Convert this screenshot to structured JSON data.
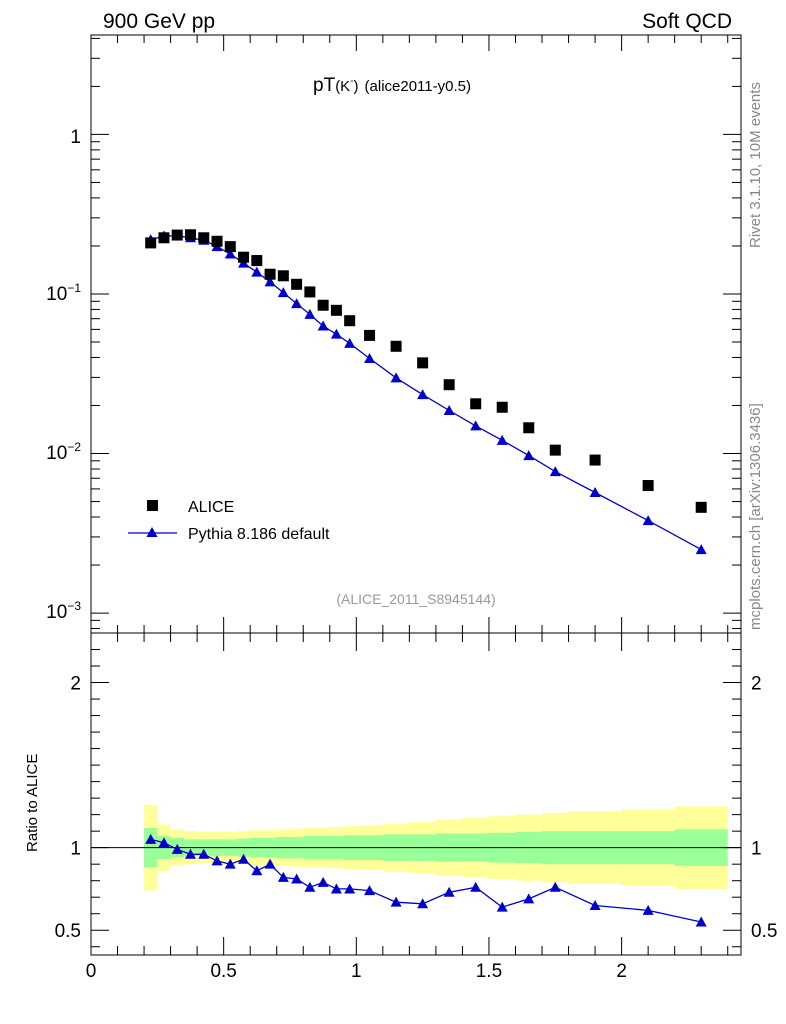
{
  "header": {
    "left": "900 GeV pp",
    "right": "Soft QCD"
  },
  "side": {
    "rivet": "Rivet 3.1.10,  10M events",
    "mcplots": "mcplots.cern.ch [arXiv:1306.3436]"
  },
  "colors": {
    "alice": "#000000",
    "pythia": "#0000cc",
    "band_inner": "#99ff99",
    "band_outer": "#ffff99"
  },
  "chart_data": [
    {
      "type": "scatter",
      "title_main": "pT",
      "title_particle": "(K",
      "title_sup": "-",
      "title_close": ")",
      "title_tag": "(alice2011-y0.5)",
      "watermark": "(ALICE_2011_S8945144)",
      "yscale": "log",
      "ylim": [
        0.00075,
        4.2
      ],
      "xlim": [
        0,
        2.45
      ],
      "ytick_labels": {
        "one": "1",
        "m1_base": "10",
        "m1_exp": "−1",
        "m2_base": "10",
        "m2_exp": "−2",
        "m3_base": "10",
        "m3_exp": "−3"
      },
      "legend": {
        "position": "lower-left",
        "alice": "ALICE",
        "pythia": "Pythia 8.186 default"
      },
      "x": [
        0.225,
        0.275,
        0.325,
        0.375,
        0.425,
        0.475,
        0.525,
        0.575,
        0.625,
        0.675,
        0.725,
        0.775,
        0.825,
        0.875,
        0.925,
        0.975,
        1.05,
        1.15,
        1.25,
        1.35,
        1.45,
        1.55,
        1.65,
        1.75,
        1.9,
        2.1,
        2.3
      ],
      "series": [
        {
          "name": "ALICE",
          "values": [
            0.209,
            0.225,
            0.234,
            0.235,
            0.225,
            0.214,
            0.198,
            0.17,
            0.162,
            0.133,
            0.13,
            0.115,
            0.103,
            0.085,
            0.079,
            0.068,
            0.055,
            0.047,
            0.037,
            0.027,
            0.0205,
            0.0195,
            0.0145,
            0.0105,
            0.0091,
            0.0063,
            0.0046
          ]
        },
        {
          "name": "Pythia 8.186 default",
          "values": [
            0.219,
            0.231,
            0.232,
            0.225,
            0.217,
            0.198,
            0.178,
            0.156,
            0.137,
            0.119,
            0.102,
            0.087,
            0.0745,
            0.063,
            0.056,
            0.049,
            0.0394,
            0.0298,
            0.0234,
            0.0186,
            0.0149,
            0.0121,
            0.0097,
            0.0077,
            0.0057,
            0.0038,
            0.0025
          ]
        }
      ]
    },
    {
      "type": "line",
      "ylabel": "Ratio to ALICE",
      "ylim": [
        0.35,
        2.3
      ],
      "xlim": [
        0,
        2.45
      ],
      "xtick_labels": [
        "0",
        "0.5",
        "1",
        "1.5",
        "2"
      ],
      "xtick_values": [
        0,
        0.5,
        1,
        1.5,
        2
      ],
      "ytick_labels": [
        "0.5",
        "1",
        "2"
      ],
      "ytick_values": [
        0.5,
        1,
        2
      ],
      "reference_line": 1,
      "x": [
        0.225,
        0.275,
        0.325,
        0.375,
        0.425,
        0.475,
        0.525,
        0.575,
        0.625,
        0.675,
        0.725,
        0.775,
        0.825,
        0.875,
        0.925,
        0.975,
        1.05,
        1.15,
        1.25,
        1.35,
        1.45,
        1.55,
        1.65,
        1.75,
        1.9,
        2.1,
        2.3
      ],
      "series": [
        {
          "name": "Pythia 8.186 default",
          "values": [
            1.05,
            1.03,
            0.99,
            0.96,
            0.96,
            0.92,
            0.9,
            0.93,
            0.86,
            0.9,
            0.82,
            0.81,
            0.76,
            0.79,
            0.75,
            0.75,
            0.74,
            0.67,
            0.66,
            0.73,
            0.76,
            0.64,
            0.69,
            0.76,
            0.65,
            0.62,
            0.55
          ]
        }
      ],
      "band_edges": [
        0.2,
        0.25,
        0.3,
        0.35,
        0.4,
        0.45,
        0.5,
        0.55,
        0.6,
        0.65,
        0.7,
        0.75,
        0.8,
        0.85,
        0.9,
        0.95,
        1.0,
        1.1,
        1.2,
        1.3,
        1.4,
        1.5,
        1.6,
        1.7,
        1.8,
        2.0,
        2.2,
        2.4
      ],
      "band_inner_half": [
        0.12,
        0.07,
        0.06,
        0.05,
        0.05,
        0.05,
        0.05,
        0.055,
        0.06,
        0.06,
        0.065,
        0.065,
        0.07,
        0.07,
        0.07,
        0.075,
        0.075,
        0.08,
        0.08,
        0.085,
        0.085,
        0.09,
        0.095,
        0.1,
        0.1,
        0.1,
        0.11
      ],
      "band_outer_half": [
        0.26,
        0.14,
        0.11,
        0.1,
        0.095,
        0.095,
        0.095,
        0.1,
        0.105,
        0.105,
        0.11,
        0.115,
        0.12,
        0.12,
        0.125,
        0.13,
        0.135,
        0.145,
        0.155,
        0.17,
        0.18,
        0.19,
        0.2,
        0.21,
        0.22,
        0.23,
        0.25
      ]
    }
  ]
}
